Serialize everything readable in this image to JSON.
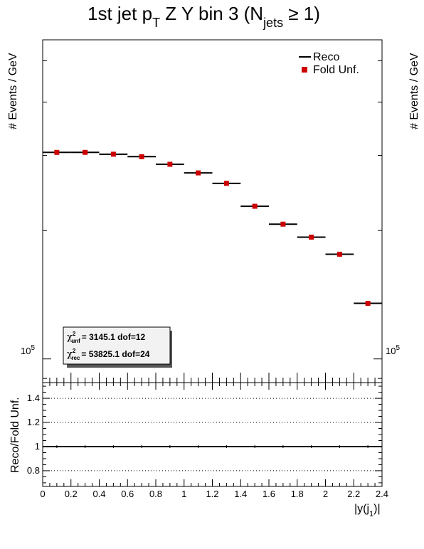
{
  "chart_data": [
    {
      "type": "scatter",
      "title": "1st jet p",
      "title_sub": "T",
      "title_mid": " Z Y bin 3 (N",
      "title_sub2": "jets",
      "title_end": " ≥ 1)",
      "ylabel": "# Events / GeV",
      "ylabel_right": "# Events / GeV",
      "yscale": "log",
      "ylim": [
        88000,
        560000
      ],
      "xlim": [
        0,
        2.4
      ],
      "y_tick_label": "10",
      "y_tick_exp": "5",
      "bins": [
        [
          0,
          0.2
        ],
        [
          0.2,
          0.4
        ],
        [
          0.4,
          0.6
        ],
        [
          0.6,
          0.8
        ],
        [
          0.8,
          1.0
        ],
        [
          1.0,
          1.2
        ],
        [
          1.2,
          1.4
        ],
        [
          1.4,
          1.6
        ],
        [
          1.6,
          1.8
        ],
        [
          1.8,
          2.0
        ],
        [
          2.0,
          2.2
        ],
        [
          2.2,
          2.4
        ]
      ],
      "series": [
        {
          "name": "Reco",
          "color": "#000000",
          "values": [
            305000,
            305000,
            302000,
            298000,
            286000,
            273000,
            258000,
            228000,
            207000,
            193000,
            176000,
            135000
          ]
        },
        {
          "name": "Fold Unf.",
          "color": "#cc0000",
          "values": [
            305000,
            305000,
            302000,
            298000,
            286000,
            273000,
            258000,
            228000,
            207000,
            193000,
            176000,
            135000
          ]
        }
      ],
      "legend": {
        "placement": "top-right",
        "entries": [
          "Reco",
          "Fold Unf."
        ]
      },
      "stats": {
        "chi_symbol": "χ",
        "sup": "2",
        "unf_sub": "unf",
        "rec_sub": "rec",
        "unf_text": "=   3145.1  dof=12",
        "rec_text": "=  53825.1  dof=24"
      }
    },
    {
      "type": "line",
      "xlabel": "|y(j",
      "xlabel_sub": "1",
      "xlabel_end": ")|",
      "ylabel": "Reco/Fold Unf.",
      "ylim": [
        0.67,
        1.53
      ],
      "xlim": [
        0,
        2.4
      ],
      "grid": "dotted-horizontal",
      "y_ticks": [
        0.8,
        1,
        1.2,
        1.4
      ],
      "y_tick_labels": [
        "0.8",
        "1",
        "1.2",
        "1.4"
      ],
      "x_ticks": [
        0,
        0.2,
        0.4,
        0.6,
        0.8,
        1,
        1.2,
        1.4,
        1.6,
        1.8,
        2,
        2.2,
        2.4
      ],
      "x_tick_labels": [
        "0",
        "0.2",
        "0.4",
        "0.6",
        "0.8",
        "1",
        "1.2",
        "1.4",
        "1.6",
        "1.8",
        "2",
        "2.2",
        "2.4"
      ],
      "series": [
        {
          "name": "Reco/Fold Unf.",
          "color": "#000000",
          "x": [
            0.1,
            0.3,
            0.5,
            0.7,
            0.9,
            1.1,
            1.3,
            1.5,
            1.7,
            1.9,
            2.1,
            2.3
          ],
          "values": [
            1,
            1,
            1,
            1,
            1,
            1,
            1,
            1,
            1,
            1,
            1,
            1
          ]
        }
      ]
    }
  ]
}
